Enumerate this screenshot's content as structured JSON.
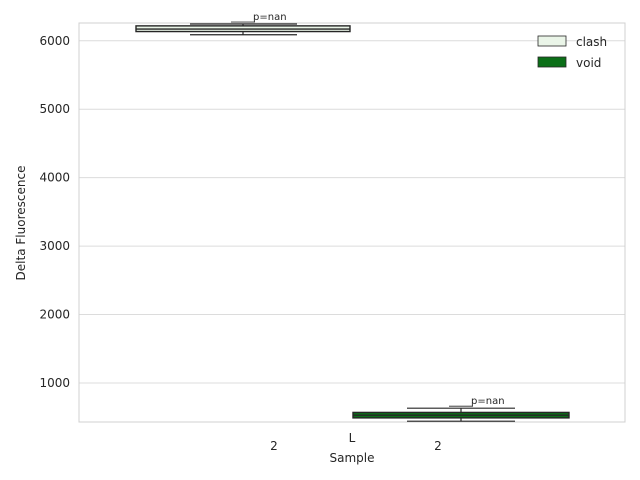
{
  "chart_data": {
    "type": "box",
    "xlabel": "Sample",
    "ylabel": "Delta Fluorescence",
    "ylim": [
      430,
      6260
    ],
    "yticks": [
      1000,
      2000,
      3000,
      4000,
      5000,
      6000
    ],
    "xtick_labels": [
      "2",
      "L",
      "2"
    ],
    "grid": true,
    "legend_position": "top-right",
    "series": [
      {
        "name": "clash",
        "color": "#eaf5e8",
        "box": {
          "whisker_low": 6088,
          "q1": 6135,
          "median": 6172,
          "q3": 6218,
          "whisker_high": 6245
        },
        "annotation": "p=nan"
      },
      {
        "name": "void",
        "color": "#0b6f18",
        "box": {
          "whisker_low": 442,
          "q1": 490,
          "median": 530,
          "q3": 570,
          "whisker_high": 632
        },
        "annotation": "p=nan"
      }
    ]
  }
}
